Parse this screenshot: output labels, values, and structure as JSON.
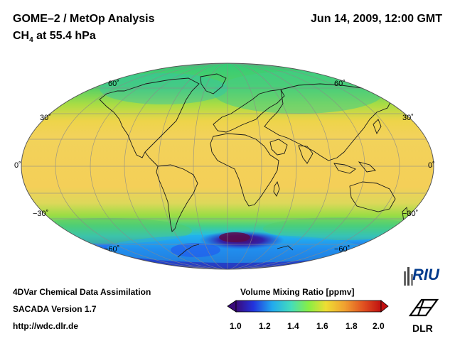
{
  "header": {
    "title_left": "GOME–2 / MetOp Analysis",
    "species_prefix": "CH",
    "species_subscript": "4",
    "species_suffix": " at 55.4 hPa",
    "datetime": "Jun 14, 2009, 12:00 GMT"
  },
  "map": {
    "projection": "Mollweide",
    "lat_labels_left": [
      "60˚",
      "30˚",
      "0˚",
      "−30˚",
      "−60˚"
    ],
    "lat_labels_right": [
      "60˚",
      "30˚",
      "0˚",
      "−30˚",
      "−60˚"
    ],
    "colors": {
      "polar_high": "#33cc66",
      "polar_mid": "#99dd44",
      "low": "#f2d25a",
      "antarctic_low": "#2244dd",
      "antarctic_min": "#551188"
    }
  },
  "footer": {
    "line1": "4DVar Chemical Data Assimilation",
    "line2": "SACADA Version 1.7",
    "line3": "http://wdc.dlr.de"
  },
  "colorbar": {
    "title": "Volume Mixing Ratio [ppmv]",
    "ticks": [
      "1.0",
      "1.2",
      "1.4",
      "1.6",
      "1.8",
      "2.0"
    ],
    "range": [
      1.0,
      2.0
    ],
    "colors": [
      "#3a0a7a",
      "#2233dd",
      "#22aaee",
      "#44ddbb",
      "#88ee44",
      "#eedd33",
      "#f0a030",
      "#e05020",
      "#c01010"
    ]
  },
  "logos": {
    "riu": "RIU",
    "dlr": "DLR"
  }
}
